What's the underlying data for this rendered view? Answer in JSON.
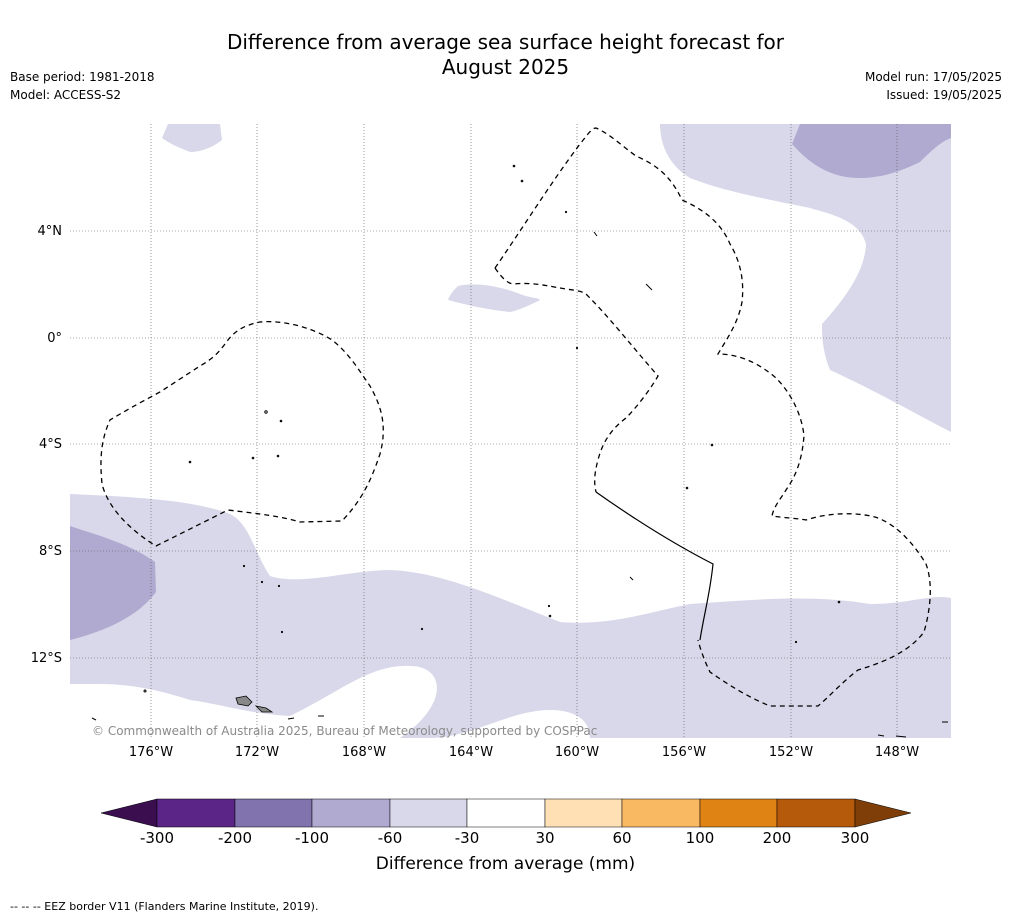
{
  "title_line1": "Difference from average sea surface height forecast for",
  "title_line2": "August 2025",
  "base_period": "Base period: 1981-2018",
  "model": "Model: ACCESS-S2",
  "model_run": "Model run: 17/05/2025",
  "issued": "Issued: 19/05/2025",
  "copyright": "© Commonwealth of Australia 2025, Bureau of Meteorology, supported by COSPPac",
  "footnote": "--  --  -- EEZ border V11 (Flanders Marine Institute, 2019).",
  "map": {
    "lat_labels": [
      "4°N",
      "0°",
      "4°S",
      "8°S",
      "12°S"
    ],
    "lon_labels": [
      "176°W",
      "172°W",
      "168°W",
      "164°W",
      "160°W",
      "156°W",
      "152°W",
      "148°W"
    ]
  },
  "colorbar": {
    "title": "Difference from average (mm)",
    "tick_labels": [
      "-300",
      "-200",
      "-100",
      "-60",
      "-30",
      "30",
      "60",
      "100",
      "200",
      "300"
    ],
    "colors": [
      "#3b0f4f",
      "#5a2587",
      "#8173ad",
      "#b0a9d0",
      "#d8d8ea",
      "#ffffff",
      "#ffe0b5",
      "#f9b862",
      "#e08315",
      "#b5590b",
      "#7f3e07"
    ]
  },
  "colors": {
    "band_1": "#d8d8ea",
    "band_2": "#b0a9d0",
    "eez_line": "#000000",
    "grid": "#555555",
    "land": "#888888"
  }
}
